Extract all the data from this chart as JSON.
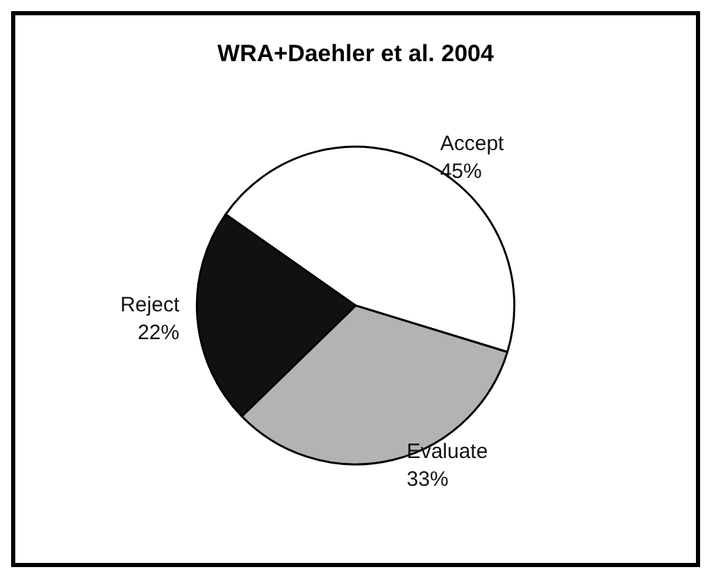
{
  "chart_data": {
    "type": "pie",
    "title": "WRA+Daehler et al. 2004",
    "categories": [
      "Accept",
      "Evaluate",
      "Reject"
    ],
    "values": [
      45,
      33,
      22
    ],
    "value_labels": [
      "45%",
      "33%",
      "22%"
    ],
    "colors": [
      "#ffffff",
      "#b3b3b3",
      "#111111"
    ]
  }
}
